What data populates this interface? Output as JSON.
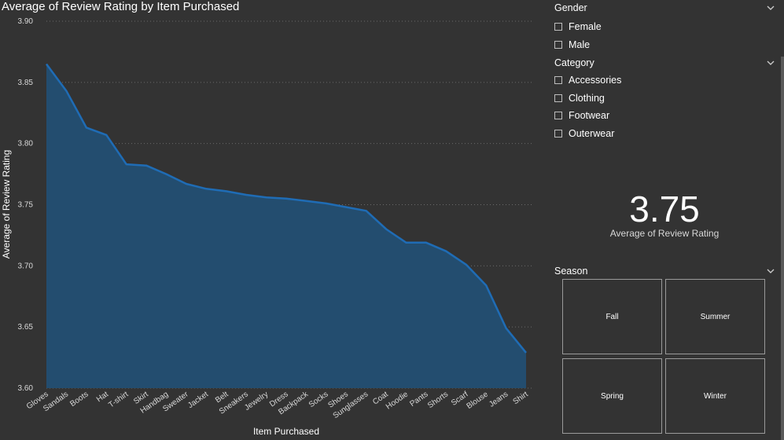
{
  "chart_data": {
    "type": "area",
    "title": "Average of Review Rating by Item Purchased",
    "xlabel": "Item Purchased",
    "ylabel": "Average of Review Rating",
    "ylim": [
      3.6,
      3.9
    ],
    "yticks": [
      "3.90",
      "3.85",
      "3.80",
      "3.75",
      "3.70",
      "3.65",
      "3.60"
    ],
    "grid": true,
    "categories": [
      "Gloves",
      "Sandals",
      "Boots",
      "Hat",
      "T-shirt",
      "Skirt",
      "Handbag",
      "Sweater",
      "Jacket",
      "Belt",
      "Sneakers",
      "Jewelry",
      "Dress",
      "Backpack",
      "Socks",
      "Shoes",
      "Sunglasses",
      "Coat",
      "Hoodie",
      "Pants",
      "Shorts",
      "Scarf",
      "Blouse",
      "Jeans",
      "Shirt"
    ],
    "values": [
      3.865,
      3.843,
      3.813,
      3.807,
      3.783,
      3.782,
      3.775,
      3.767,
      3.763,
      3.761,
      3.758,
      3.756,
      3.755,
      3.753,
      3.751,
      3.748,
      3.745,
      3.73,
      3.719,
      3.719,
      3.712,
      3.701,
      3.684,
      3.649,
      3.629
    ],
    "colors": {
      "line": "#1f6cb5",
      "fill": "#234d6f",
      "grid": "#6a6a6a"
    }
  },
  "gender_slicer": {
    "title": "Gender",
    "options": [
      "Female",
      "Male"
    ]
  },
  "category_slicer": {
    "title": "Category",
    "options": [
      "Accessories",
      "Clothing",
      "Footwear",
      "Outerwear"
    ]
  },
  "kpi_card": {
    "value": "3.75",
    "label": "Average of Review Rating"
  },
  "season_slicer": {
    "title": "Season",
    "tiles": [
      "Fall",
      "Summer",
      "Spring",
      "Winter"
    ]
  }
}
